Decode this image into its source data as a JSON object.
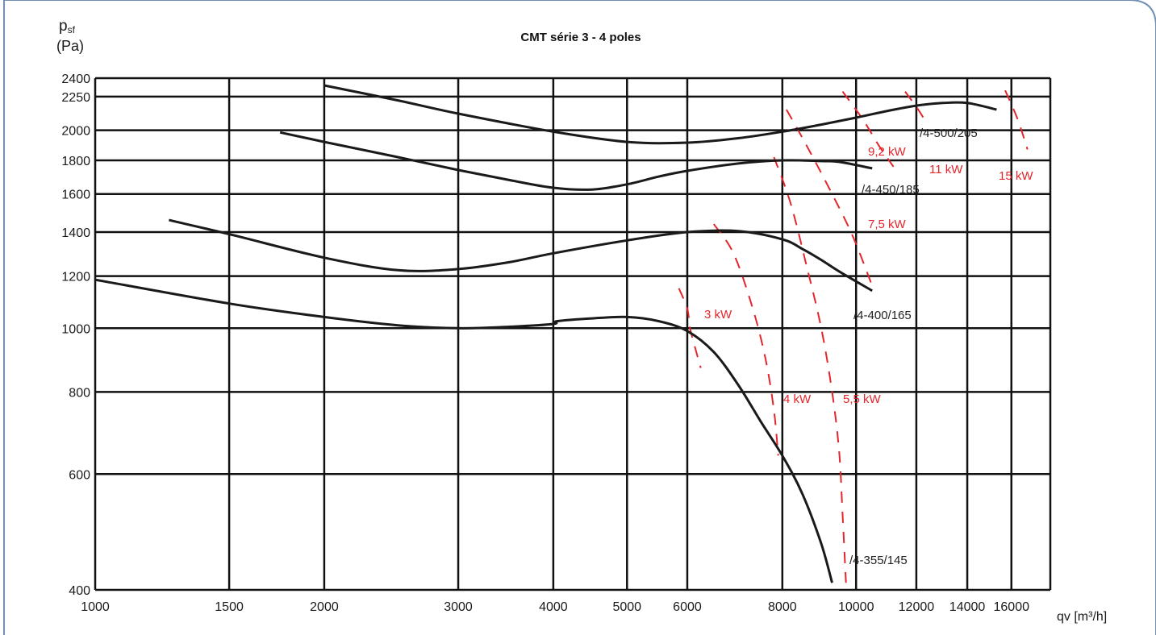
{
  "chart_data": {
    "type": "line",
    "title": "CMT série 3 - 4 poles",
    "ylabel_symbol": "p",
    "ylabel_sub": "sf",
    "ylabel_unit": "(Pa)",
    "xlabel": "qv [m³/h]",
    "x_scale": "log",
    "y_scale": "log",
    "xlim": [
      1000,
      18000
    ],
    "ylim": [
      400,
      2400
    ],
    "x_ticks": [
      1000,
      1500,
      2000,
      3000,
      4000,
      5000,
      6000,
      8000,
      10000,
      12000,
      14000,
      16000
    ],
    "y_ticks": [
      400,
      600,
      800,
      1000,
      1200,
      1400,
      1600,
      1800,
      2000,
      2250,
      2400
    ],
    "grid": true,
    "series": [
      {
        "name": "/4-500/205",
        "color": "#1a1a1a",
        "x": [
          2000,
          2500,
          3000,
          4000,
          5000,
          6000,
          7000,
          8000,
          9000,
          10000,
          11000,
          12000,
          13000,
          14000,
          15300
        ],
        "y": [
          2340,
          2220,
          2120,
          1990,
          1920,
          1915,
          1945,
          1990,
          2040,
          2090,
          2140,
          2180,
          2200,
          2200,
          2150
        ]
      },
      {
        "name": "/4-450/185",
        "color": "#1a1a1a",
        "x": [
          1750,
          2000,
          2500,
          3000,
          3500,
          4000,
          4500,
          5000,
          5500,
          6000,
          7000,
          8000,
          9000,
          9500,
          10500
        ],
        "y": [
          1985,
          1920,
          1820,
          1740,
          1680,
          1635,
          1625,
          1655,
          1700,
          1735,
          1780,
          1800,
          1795,
          1790,
          1750
        ]
      },
      {
        "name": "/4-400/165",
        "color": "#1a1a1a",
        "x": [
          1250,
          1500,
          2000,
          2500,
          3000,
          3500,
          4000,
          5000,
          6000,
          7000,
          8000,
          8500,
          9000,
          9500,
          10500
        ],
        "y": [
          1460,
          1390,
          1280,
          1225,
          1230,
          1260,
          1300,
          1360,
          1400,
          1405,
          1365,
          1320,
          1270,
          1220,
          1140
        ]
      },
      {
        "name": "/4-355/145",
        "color": "#1a1a1a",
        "x": [
          1000,
          1500,
          2000,
          2500,
          3000,
          3500,
          4000,
          4050,
          4500,
          5000,
          5500,
          6000,
          6500,
          7000,
          7500,
          8000,
          8500,
          9000,
          9300
        ],
        "y": [
          1185,
          1090,
          1040,
          1010,
          1000,
          1005,
          1015,
          1025,
          1035,
          1040,
          1025,
          990,
          920,
          820,
          720,
          640,
          560,
          470,
          410
        ]
      }
    ],
    "power_lines": [
      {
        "name": "3 kW",
        "color": "#e3262c",
        "x": [
          5850,
          6000,
          6050,
          6150,
          6250
        ],
        "y": [
          1150,
          1070,
          1000,
          930,
          870
        ]
      },
      {
        "name": "4 kW",
        "color": "#e3262c",
        "x": [
          6500,
          6900,
          7300,
          7600,
          7800,
          7900
        ],
        "y": [
          1440,
          1300,
          1080,
          900,
          750,
          640
        ]
      },
      {
        "name": "5,5 kW",
        "color": "#e3262c",
        "x": [
          7800,
          8200,
          8600,
          9000,
          9300,
          9500,
          9600,
          9700
        ],
        "y": [
          1820,
          1550,
          1250,
          1000,
          800,
          650,
          520,
          410
        ]
      },
      {
        "name": "7,5 kW",
        "color": "#e3262c",
        "x": [
          8100,
          8600,
          9300,
          9900,
          10500
        ],
        "y": [
          2150,
          1900,
          1600,
          1380,
          1160
        ]
      },
      {
        "name": "9,2 kW",
        "color": "#e3262c",
        "x": [
          9600,
          10200,
          10700,
          11200
        ],
        "y": [
          2290,
          2080,
          1900,
          1760
        ]
      },
      {
        "name": "11 kW",
        "color": "#e3262c",
        "x": [
          11600,
          12100,
          12400
        ],
        "y": [
          2290,
          2140,
          2040
        ]
      },
      {
        "name": "15 kW",
        "color": "#e3262c",
        "x": [
          15700,
          16300,
          16800
        ],
        "y": [
          2300,
          2080,
          1870
        ]
      }
    ]
  }
}
